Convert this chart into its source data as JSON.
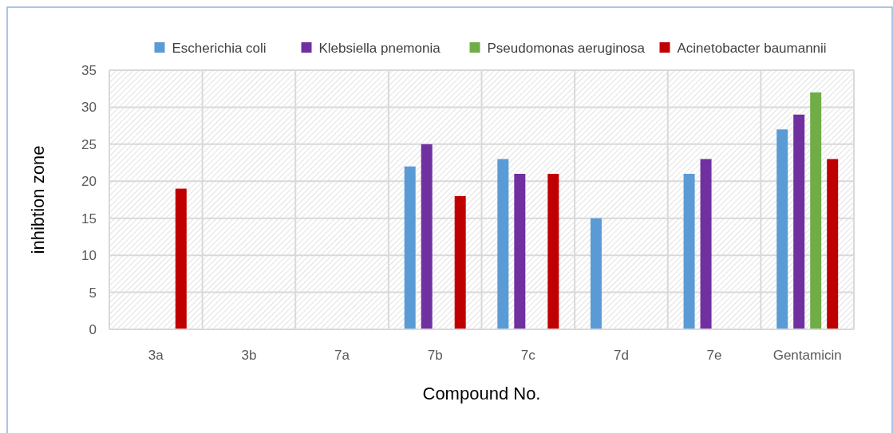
{
  "chart_data": {
    "type": "bar",
    "xlabel": "Compound No.",
    "ylabel": "inhibtion zone",
    "categories": [
      "3a",
      "3b",
      "7a",
      "7b",
      "7c",
      "7d",
      "7e",
      "Gentamicin"
    ],
    "series": [
      {
        "name": "Escherichia coli",
        "color": "#5b9bd5",
        "values": [
          0,
          0,
          0,
          22,
          23,
          15,
          21,
          27
        ]
      },
      {
        "name": "Klebsiella pnemonia",
        "color": "#7030a0",
        "values": [
          0,
          0,
          0,
          25,
          21,
          0,
          23,
          29
        ]
      },
      {
        "name": "Pseudomonas aeruginosa",
        "color": "#70ad47",
        "values": [
          0,
          0,
          0,
          0,
          0,
          0,
          0,
          32
        ]
      },
      {
        "name": "Acinetobacter baumannii",
        "color": "#c00000",
        "values": [
          19,
          0,
          0,
          18,
          21,
          0,
          0,
          23
        ]
      }
    ],
    "ylim": [
      0,
      35
    ],
    "yticks": [
      0,
      5,
      10,
      15,
      20,
      25,
      30,
      35
    ],
    "grid": true,
    "legend": "top"
  }
}
